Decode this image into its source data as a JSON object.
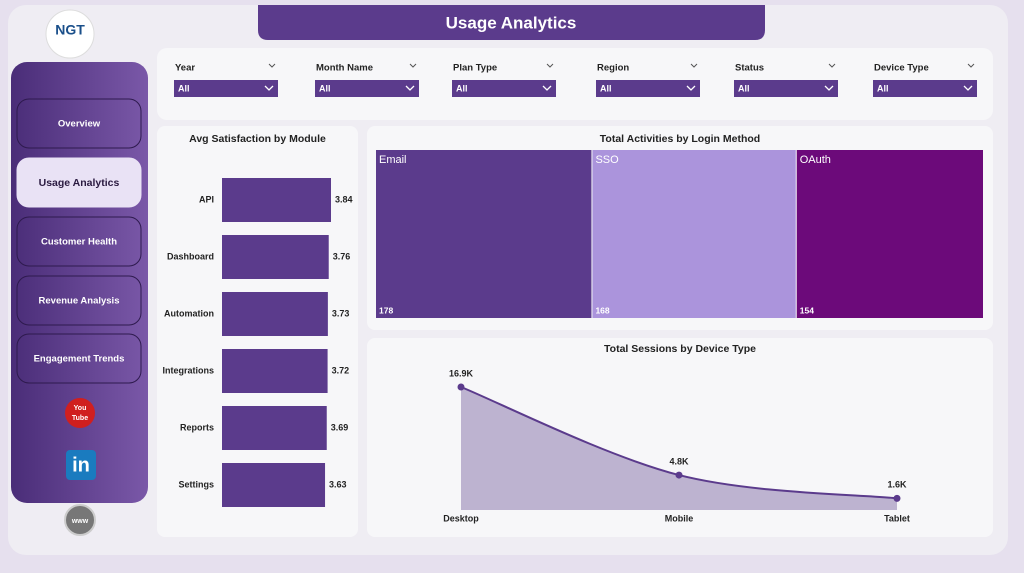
{
  "header": {
    "title": "Usage Analytics"
  },
  "logo": {
    "text": "NGT"
  },
  "nav": {
    "items": [
      "Overview",
      "Usage Analytics",
      "Customer Health",
      "Revenue Analysis",
      "Engagement Trends"
    ],
    "active": 1
  },
  "filters": [
    {
      "label": "Year",
      "value": "All"
    },
    {
      "label": "Month Name",
      "value": "All"
    },
    {
      "label": "Plan Type",
      "value": "All"
    },
    {
      "label": "Region",
      "value": "All"
    },
    {
      "label": "Status",
      "value": "All"
    },
    {
      "label": "Device Type",
      "value": "All"
    }
  ],
  "social": {
    "youtube": [
      "You",
      "Tube"
    ],
    "linkedin": "in",
    "website": "www"
  },
  "chart_data": [
    {
      "type": "hbar",
      "title": "Avg Satisfaction by Module",
      "categories": [
        "API",
        "Dashboard",
        "Automation",
        "Integrations",
        "Reports",
        "Settings"
      ],
      "values": [
        3.84,
        3.76,
        3.73,
        3.72,
        3.69,
        3.63
      ],
      "color": "#5b3b8c"
    },
    {
      "type": "treemap",
      "title": "Total Activities by Login Method",
      "categories": [
        "Email",
        "SSO",
        "OAuth"
      ],
      "values": [
        178,
        168,
        154
      ],
      "colors": [
        "#5b3b8c",
        "#ab94dc",
        "#6c0a7a"
      ]
    },
    {
      "type": "area",
      "title": "Total Sessions by Device Type",
      "categories": [
        "Desktop",
        "Mobile",
        "Tablet"
      ],
      "values": [
        16900,
        4800,
        1600
      ],
      "value_labels": [
        "16.9K",
        "4.8K",
        "1.6K"
      ],
      "color": "#5b3b8c",
      "fill": "#b3a7c9"
    }
  ]
}
